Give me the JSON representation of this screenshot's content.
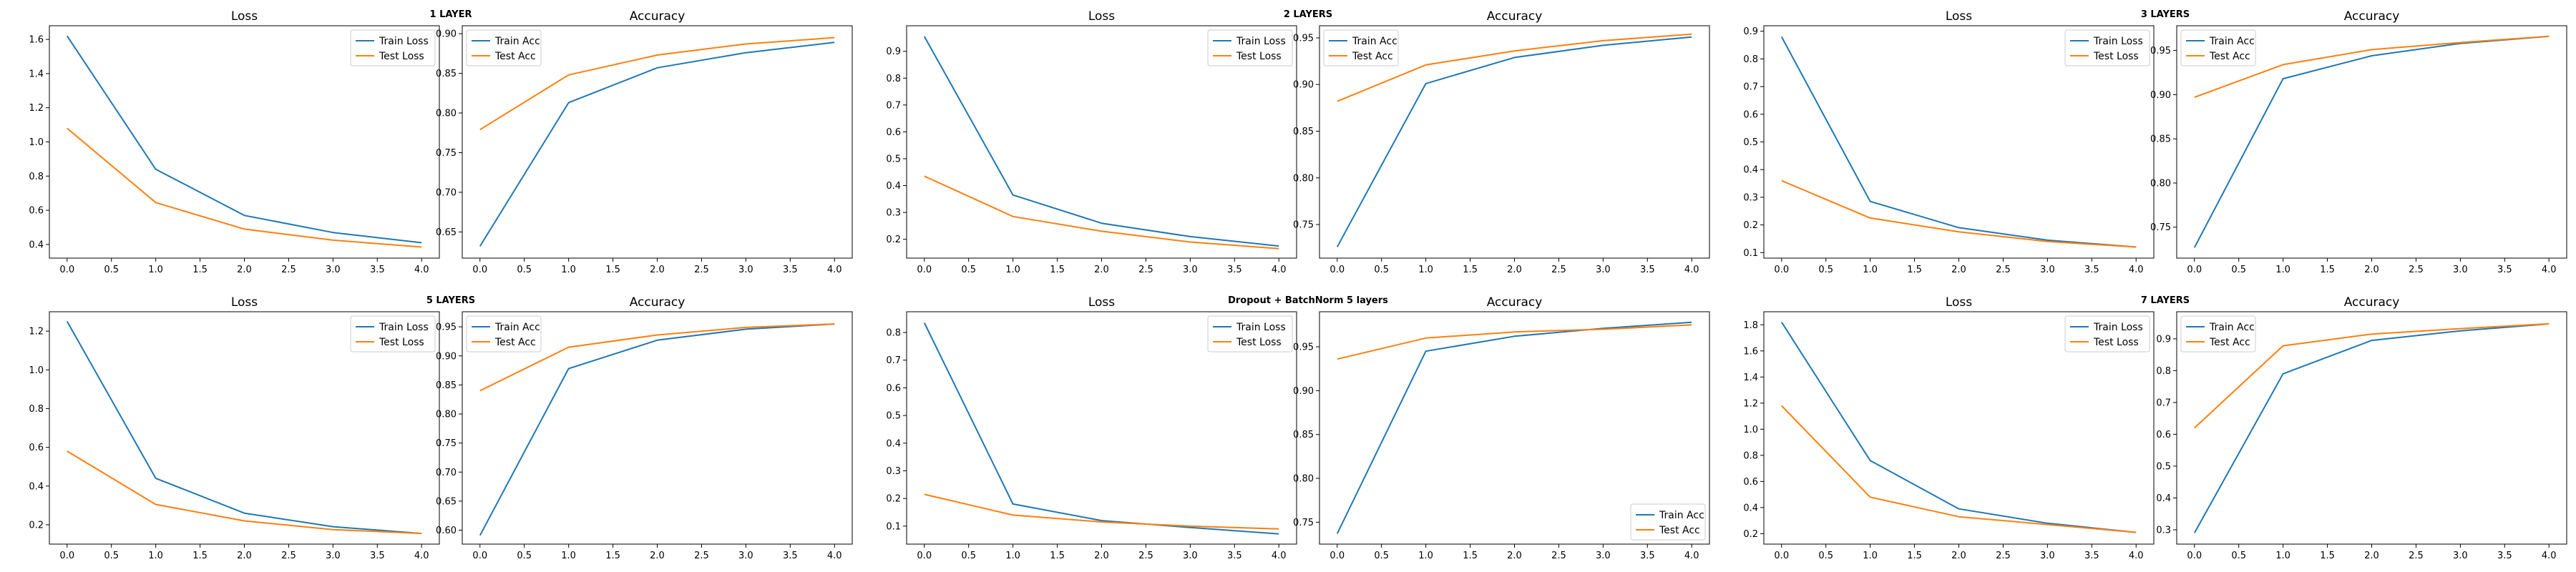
{
  "colors": {
    "train": "#1f77b4",
    "test": "#ff7f0e",
    "frame": "#000000",
    "legend_edge": "#cccccc"
  },
  "chart_data": [
    {
      "group_label": "1 LAYER",
      "charts": [
        {
          "type": "line",
          "title": "Loss",
          "x": [
            0,
            1,
            2,
            3,
            4
          ],
          "xticks": [
            "0.0",
            "0.5",
            "1.0",
            "1.5",
            "2.0",
            "2.5",
            "3.0",
            "3.5",
            "4.0"
          ],
          "xlim": [
            -0.2,
            4.2
          ],
          "yticks": [
            "0.4",
            "0.6",
            "0.8",
            "1.0",
            "1.2",
            "1.4",
            "1.6"
          ],
          "ylim": [
            0.32,
            1.68
          ],
          "legend": "upper right",
          "series": [
            {
              "name": "Train Loss",
              "values": [
                1.62,
                0.84,
                0.57,
                0.47,
                0.41
              ]
            },
            {
              "name": "Test Loss",
              "values": [
                1.08,
                0.645,
                0.49,
                0.425,
                0.385
              ]
            }
          ]
        },
        {
          "type": "line",
          "title": "Accuracy",
          "x": [
            0,
            1,
            2,
            3,
            4
          ],
          "xticks": [
            "0.0",
            "0.5",
            "1.0",
            "1.5",
            "2.0",
            "2.5",
            "3.0",
            "3.5",
            "4.0"
          ],
          "xlim": [
            -0.2,
            4.2
          ],
          "yticks": [
            "0.65",
            "0.70",
            "0.75",
            "0.80",
            "0.85",
            "0.90"
          ],
          "ylim": [
            0.617,
            0.91
          ],
          "legend": "upper left",
          "series": [
            {
              "name": "Train Acc",
              "values": [
                0.632,
                0.813,
                0.857,
                0.876,
                0.889
              ]
            },
            {
              "name": "Test Acc",
              "values": [
                0.779,
                0.848,
                0.873,
                0.887,
                0.895
              ]
            }
          ]
        }
      ]
    },
    {
      "group_label": "2 LAYERS",
      "charts": [
        {
          "type": "line",
          "title": "Loss",
          "x": [
            0,
            1,
            2,
            3,
            4
          ],
          "xticks": [
            "0.0",
            "0.5",
            "1.0",
            "1.5",
            "2.0",
            "2.5",
            "3.0",
            "3.5",
            "4.0"
          ],
          "xlim": [
            -0.2,
            4.2
          ],
          "yticks": [
            "0.2",
            "0.3",
            "0.4",
            "0.5",
            "0.6",
            "0.7",
            "0.8",
            "0.9"
          ],
          "ylim": [
            0.13,
            0.995
          ],
          "legend": "upper right",
          "series": [
            {
              "name": "Train Loss",
              "values": [
                0.955,
                0.365,
                0.26,
                0.21,
                0.175
              ]
            },
            {
              "name": "Test Loss",
              "values": [
                0.435,
                0.285,
                0.23,
                0.19,
                0.165
              ]
            }
          ]
        },
        {
          "type": "line",
          "title": "Accuracy",
          "x": [
            0,
            1,
            2,
            3,
            4
          ],
          "xticks": [
            "0.0",
            "0.5",
            "1.0",
            "1.5",
            "2.0",
            "2.5",
            "3.0",
            "3.5",
            "4.0"
          ],
          "xlim": [
            -0.2,
            4.2
          ],
          "yticks": [
            "0.75",
            "0.80",
            "0.85",
            "0.90",
            "0.95"
          ],
          "ylim": [
            0.714,
            0.963
          ],
          "legend": "upper left",
          "series": [
            {
              "name": "Train Acc",
              "values": [
                0.726,
                0.901,
                0.929,
                0.942,
                0.951
              ]
            },
            {
              "name": "Test Acc",
              "values": [
                0.882,
                0.921,
                0.936,
                0.947,
                0.954
              ]
            }
          ]
        }
      ]
    },
    {
      "group_label": "3 LAYERS",
      "charts": [
        {
          "type": "line",
          "title": "Loss",
          "x": [
            0,
            1,
            2,
            3,
            4
          ],
          "xticks": [
            "0.0",
            "0.5",
            "1.0",
            "1.5",
            "2.0",
            "2.5",
            "3.0",
            "3.5",
            "4.0"
          ],
          "xlim": [
            -0.2,
            4.2
          ],
          "yticks": [
            "0.1",
            "0.2",
            "0.3",
            "0.4",
            "0.5",
            "0.6",
            "0.7",
            "0.8",
            "0.9"
          ],
          "ylim": [
            0.08,
            0.92
          ],
          "legend": "upper right",
          "series": [
            {
              "name": "Train Loss",
              "values": [
                0.88,
                0.285,
                0.19,
                0.145,
                0.12
              ]
            },
            {
              "name": "Test Loss",
              "values": [
                0.36,
                0.225,
                0.175,
                0.14,
                0.12
              ]
            }
          ]
        },
        {
          "type": "line",
          "title": "Accuracy",
          "x": [
            0,
            1,
            2,
            3,
            4
          ],
          "xticks": [
            "0.0",
            "0.5",
            "1.0",
            "1.5",
            "2.0",
            "2.5",
            "3.0",
            "3.5",
            "4.0"
          ],
          "xlim": [
            -0.2,
            4.2
          ],
          "yticks": [
            "0.75",
            "0.80",
            "0.85",
            "0.90",
            "0.95"
          ],
          "ylim": [
            0.715,
            0.978
          ],
          "legend": "upper left",
          "series": [
            {
              "name": "Train Acc",
              "values": [
                0.727,
                0.918,
                0.944,
                0.958,
                0.966
              ]
            },
            {
              "name": "Test Acc",
              "values": [
                0.897,
                0.934,
                0.951,
                0.959,
                0.966
              ]
            }
          ]
        }
      ]
    },
    {
      "group_label": "5 LAYERS",
      "charts": [
        {
          "type": "line",
          "title": "Loss",
          "x": [
            0,
            1,
            2,
            3,
            4
          ],
          "xticks": [
            "0.0",
            "0.5",
            "1.0",
            "1.5",
            "2.0",
            "2.5",
            "3.0",
            "3.5",
            "4.0"
          ],
          "xlim": [
            -0.2,
            4.2
          ],
          "yticks": [
            "0.2",
            "0.4",
            "0.6",
            "0.8",
            "1.0",
            "1.2"
          ],
          "ylim": [
            0.1,
            1.3
          ],
          "legend": "upper right",
          "series": [
            {
              "name": "Train Loss",
              "values": [
                1.25,
                0.44,
                0.26,
                0.19,
                0.155
              ]
            },
            {
              "name": "Test Loss",
              "values": [
                0.58,
                0.305,
                0.22,
                0.175,
                0.155
              ]
            }
          ]
        },
        {
          "type": "line",
          "title": "Accuracy",
          "x": [
            0,
            1,
            2,
            3,
            4
          ],
          "xticks": [
            "0.0",
            "0.5",
            "1.0",
            "1.5",
            "2.0",
            "2.5",
            "3.0",
            "3.5",
            "4.0"
          ],
          "xlim": [
            -0.2,
            4.2
          ],
          "yticks": [
            "0.60",
            "0.65",
            "0.70",
            "0.75",
            "0.80",
            "0.85",
            "0.90",
            "0.95"
          ],
          "ylim": [
            0.576,
            0.976
          ],
          "legend": "upper left",
          "series": [
            {
              "name": "Train Acc",
              "values": [
                0.591,
                0.878,
                0.927,
                0.946,
                0.955
              ]
            },
            {
              "name": "Test Acc",
              "values": [
                0.84,
                0.915,
                0.936,
                0.949,
                0.955
              ]
            }
          ]
        }
      ]
    },
    {
      "group_label": "Dropout + BatchNorm 5 layers",
      "charts": [
        {
          "type": "line",
          "title": "Loss",
          "x": [
            0,
            1,
            2,
            3,
            4
          ],
          "xticks": [
            "0.0",
            "0.5",
            "1.0",
            "1.5",
            "2.0",
            "2.5",
            "3.0",
            "3.5",
            "4.0"
          ],
          "xlim": [
            -0.2,
            4.2
          ],
          "yticks": [
            "0.1",
            "0.2",
            "0.3",
            "0.4",
            "0.5",
            "0.6",
            "0.7",
            "0.8"
          ],
          "ylim": [
            0.035,
            0.875
          ],
          "legend": "upper right",
          "series": [
            {
              "name": "Train Loss",
              "values": [
                0.835,
                0.18,
                0.12,
                0.095,
                0.072
              ]
            },
            {
              "name": "Test Loss",
              "values": [
                0.215,
                0.14,
                0.115,
                0.1,
                0.09
              ]
            }
          ]
        },
        {
          "type": "line",
          "title": "Accuracy",
          "x": [
            0,
            1,
            2,
            3,
            4
          ],
          "xticks": [
            "0.0",
            "0.5",
            "1.0",
            "1.5",
            "2.0",
            "2.5",
            "3.0",
            "3.5",
            "4.0"
          ],
          "xlim": [
            -0.2,
            4.2
          ],
          "yticks": [
            "0.75",
            "0.80",
            "0.85",
            "0.90",
            "0.95"
          ],
          "ylim": [
            0.725,
            0.99
          ],
          "legend": "lower right",
          "series": [
            {
              "name": "Train Acc",
              "values": [
                0.737,
                0.945,
                0.962,
                0.971,
                0.978
              ]
            },
            {
              "name": "Test Acc",
              "values": [
                0.936,
                0.96,
                0.967,
                0.97,
                0.975
              ]
            }
          ]
        }
      ]
    },
    {
      "group_label": "7 LAYERS",
      "charts": [
        {
          "type": "line",
          "title": "Loss",
          "x": [
            0,
            1,
            2,
            3,
            4
          ],
          "xticks": [
            "0.0",
            "0.5",
            "1.0",
            "1.5",
            "2.0",
            "2.5",
            "3.0",
            "3.5",
            "4.0"
          ],
          "xlim": [
            -0.2,
            4.2
          ],
          "yticks": [
            "0.2",
            "0.4",
            "0.6",
            "0.8",
            "1.0",
            "1.2",
            "1.4",
            "1.6",
            "1.8"
          ],
          "ylim": [
            0.12,
            1.9
          ],
          "legend": "upper right",
          "series": [
            {
              "name": "Train Loss",
              "values": [
                1.82,
                0.76,
                0.39,
                0.28,
                0.21
              ]
            },
            {
              "name": "Test Loss",
              "values": [
                1.18,
                0.48,
                0.33,
                0.27,
                0.21
              ]
            }
          ]
        },
        {
          "type": "line",
          "title": "Accuracy",
          "x": [
            0,
            1,
            2,
            3,
            4
          ],
          "xticks": [
            "0.0",
            "0.5",
            "1.0",
            "1.5",
            "2.0",
            "2.5",
            "3.0",
            "3.5",
            "4.0"
          ],
          "xlim": [
            -0.2,
            4.2
          ],
          "yticks": [
            "0.3",
            "0.4",
            "0.5",
            "0.6",
            "0.7",
            "0.8",
            "0.9"
          ],
          "ylim": [
            0.255,
            0.985
          ],
          "legend": "upper left",
          "series": [
            {
              "name": "Train Acc",
              "values": [
                0.29,
                0.79,
                0.895,
                0.925,
                0.947
              ]
            },
            {
              "name": "Test Acc",
              "values": [
                0.62,
                0.878,
                0.915,
                0.932,
                0.947
              ]
            }
          ]
        }
      ]
    }
  ]
}
